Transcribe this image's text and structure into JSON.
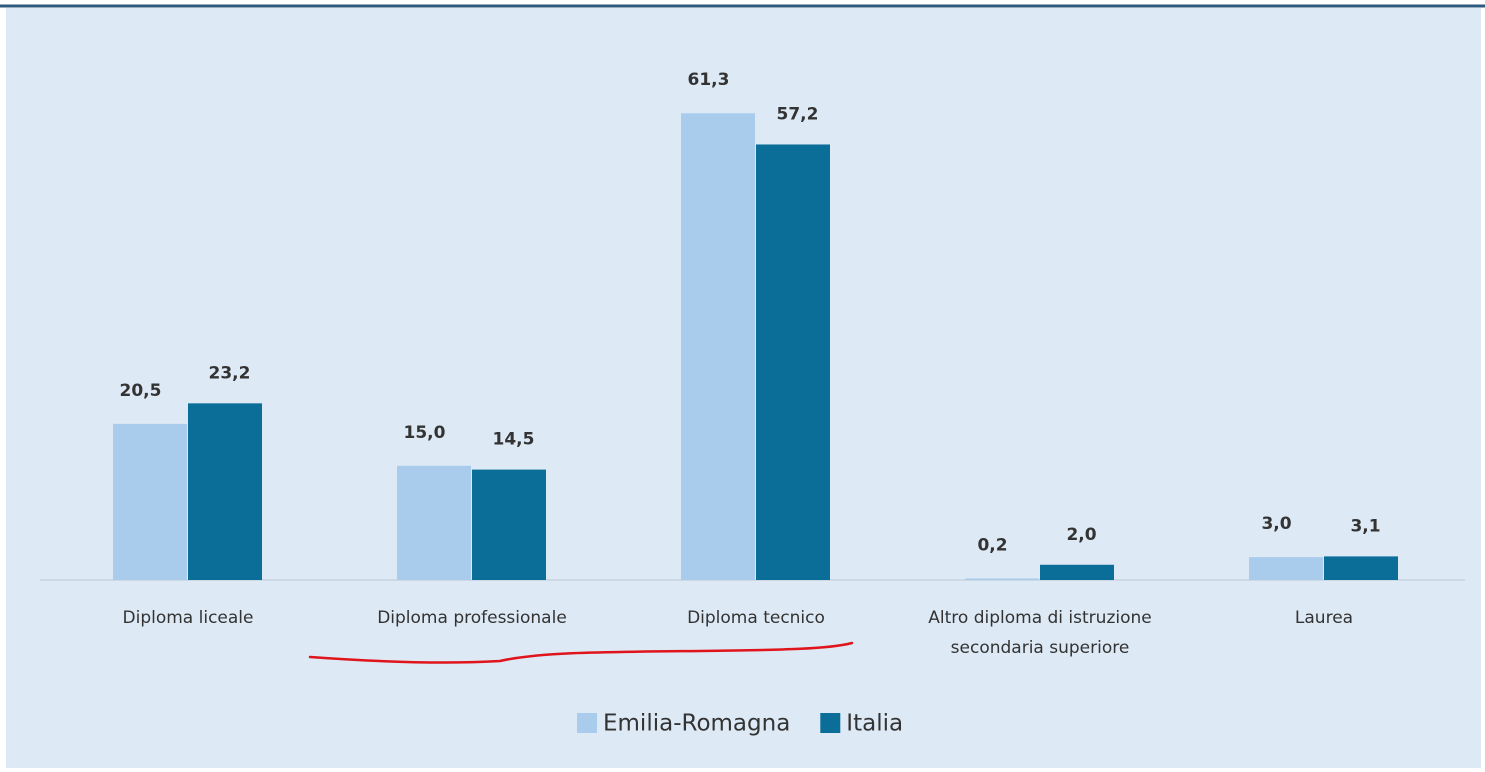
{
  "chart_data": {
    "type": "bar",
    "categories": [
      "Diploma liceale",
      "Diploma professionale",
      "Diploma tecnico",
      "Altro diploma di istruzione secondaria superiore",
      "Laurea"
    ],
    "series": [
      {
        "name": "Emilia-Romagna",
        "color": "#a9cced",
        "values": [
          20.5,
          15.0,
          61.3,
          0.2,
          3.0
        ],
        "value_labels": [
          "20,5",
          "15,0",
          "61,3",
          "0,2",
          "3,0"
        ]
      },
      {
        "name": "Italia",
        "color": "#0b6e99",
        "values": [
          23.2,
          14.5,
          57.2,
          2.0,
          3.1
        ],
        "value_labels": [
          "23,2",
          "14,5",
          "57,2",
          "2,0",
          "3,1"
        ]
      }
    ],
    "ylim": [
      0,
      70
    ]
  }
}
